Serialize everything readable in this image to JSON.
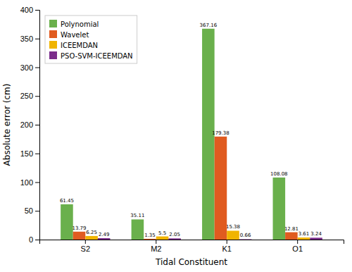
{
  "chart_data": {
    "type": "bar",
    "categories": [
      "S2",
      "M2",
      "K1",
      "O1"
    ],
    "series": [
      {
        "name": "Polynomial",
        "color": "#6ab04c",
        "values": [
          61.45,
          35.11,
          367.16,
          108.08
        ]
      },
      {
        "name": "Wavelet",
        "color": "#e05b20",
        "values": [
          13.79,
          1.35,
          179.38,
          12.81
        ]
      },
      {
        "name": "ICEEMDAN",
        "color": "#f0b400",
        "values": [
          6.25,
          5.5,
          15.38,
          3.61
        ]
      },
      {
        "name": "PSO-SVM-ICEEMDAN",
        "color": "#7b2d8b",
        "values": [
          2.49,
          2.05,
          0.66,
          3.24
        ]
      }
    ],
    "xlabel": "Tidal Constituent",
    "ylabel": "Absolute error (cm)",
    "ylim": [
      0,
      400
    ],
    "yticks": [
      0,
      50,
      100,
      150,
      200,
      250,
      300,
      350,
      400
    ],
    "legend": "upper left",
    "data_labels": true,
    "grid": false
  }
}
